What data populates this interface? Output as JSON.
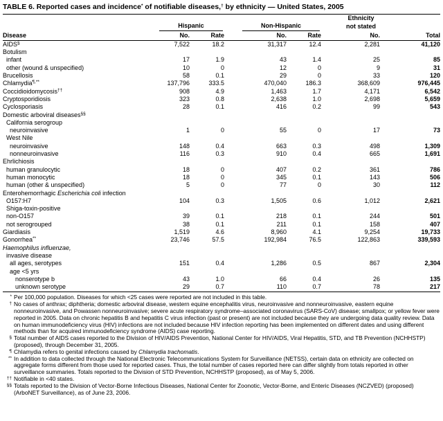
{
  "title": [
    "TABLE 6. Reported cases and incidence",
    {
      "t": "*",
      "s": "sup"
    },
    " of notifiable diseases,",
    {
      "t": "†",
      "s": "sup"
    },
    " by ethnicity — United States, 2005"
  ],
  "header": {
    "ethnicity": [
      "Ethnicity",
      "not stated"
    ],
    "groups": [
      "Hispanic",
      "Non-Hispanic"
    ],
    "columns": [
      "Disease",
      "No.",
      "Rate",
      "No.",
      "Rate",
      "No.",
      "Total"
    ]
  },
  "table": {
    "rows": [
      {
        "label": [
          "AIDS",
          {
            "t": "§",
            "s": "sup"
          }
        ],
        "level": 0,
        "cells": [
          "7,522",
          "18.2",
          "31,317",
          "12.4",
          "2,281",
          "41,120"
        ]
      },
      {
        "label": [
          "Botulism"
        ],
        "level": 0
      },
      {
        "label": [
          "infant"
        ],
        "level": 1,
        "cells": [
          "17",
          "1.9",
          "43",
          "1.4",
          "25",
          "85"
        ]
      },
      {
        "label": [
          "other (wound & unspecified)"
        ],
        "level": 1,
        "cells": [
          "10",
          "0",
          "12",
          "0",
          "9",
          "31"
        ]
      },
      {
        "label": [
          "Brucellosis"
        ],
        "level": 0,
        "cells": [
          "58",
          "0.1",
          "29",
          "0",
          "33",
          "120"
        ]
      },
      {
        "label": [
          "Chlamydia",
          {
            "t": "¶,**",
            "s": "sup"
          }
        ],
        "level": 0,
        "cells": [
          "137,796",
          "333.5",
          "470,040",
          "186.3",
          "368,609",
          "976,445"
        ]
      },
      {
        "label": [
          "Coccidioidomycosis",
          {
            "t": "††",
            "s": "sup"
          }
        ],
        "level": 0,
        "cells": [
          "908",
          "4.9",
          "1,463",
          "1.7",
          "4,171",
          "6,542"
        ]
      },
      {
        "label": [
          "Cryptosporidiosis"
        ],
        "level": 0,
        "cells": [
          "323",
          "0.8",
          "2,638",
          "1.0",
          "2,698",
          "5,659"
        ]
      },
      {
        "label": [
          "Cyclosporiasis"
        ],
        "level": 0,
        "cells": [
          "28",
          "0.1",
          "416",
          "0.2",
          "99",
          "543"
        ]
      },
      {
        "label": [
          "Domestic arboviral diseases",
          {
            "t": "§§",
            "s": "sup"
          }
        ],
        "level": 0
      },
      {
        "label": [
          "California serogroup"
        ],
        "level": 1
      },
      {
        "label": [
          "neuroinvasive"
        ],
        "level": 2,
        "cells": [
          "1",
          "0",
          "55",
          "0",
          "17",
          "73"
        ]
      },
      {
        "label": [
          "West Nile"
        ],
        "level": 1
      },
      {
        "label": [
          "neuroinvasive"
        ],
        "level": 2,
        "cells": [
          "148",
          "0.4",
          "663",
          "0.3",
          "498",
          "1,309"
        ]
      },
      {
        "label": [
          "nonneuroinvasive"
        ],
        "level": 2,
        "cells": [
          "116",
          "0.3",
          "910",
          "0.4",
          "665",
          "1,691"
        ]
      },
      {
        "label": [
          "Ehrlichiosis"
        ],
        "level": 0
      },
      {
        "label": [
          "human granulocytic"
        ],
        "level": 1,
        "cells": [
          "18",
          "0",
          "407",
          "0.2",
          "361",
          "786"
        ]
      },
      {
        "label": [
          "human monocytic"
        ],
        "level": 1,
        "cells": [
          "18",
          "0",
          "345",
          "0.1",
          "143",
          "506"
        ]
      },
      {
        "label": [
          "human (other & unspecified)"
        ],
        "level": 1,
        "cells": [
          "5",
          "0",
          "77",
          "0",
          "30",
          "112"
        ]
      },
      {
        "label": [
          "Enterohemorrhagic ",
          {
            "t": "Escherichia coli",
            "s": "i"
          },
          " infection"
        ],
        "level": 0
      },
      {
        "label": [
          "O157:H7"
        ],
        "level": 1,
        "cells": [
          "104",
          "0.3",
          "1,505",
          "0.6",
          "1,012",
          "2,621"
        ]
      },
      {
        "label": [
          "Shiga-toxin-positive"
        ],
        "level": 1
      },
      {
        "label": [
          "non-O157"
        ],
        "level": 1,
        "cells": [
          "39",
          "0.1",
          "218",
          "0.1",
          "244",
          "501"
        ]
      },
      {
        "label": [
          "not serogrouped"
        ],
        "level": 1,
        "cells": [
          "38",
          "0.1",
          "211",
          "0.1",
          "158",
          "407"
        ]
      },
      {
        "label": [
          "Giardiasis"
        ],
        "level": 0,
        "cells": [
          "1,519",
          "4.6",
          "8,960",
          "4.1",
          "9,254",
          "19,733"
        ]
      },
      {
        "label": [
          "Gonorrhea",
          {
            "t": "**",
            "s": "sup"
          }
        ],
        "level": 0,
        "cells": [
          "23,746",
          "57.5",
          "192,984",
          "76.5",
          "122,863",
          "339,593"
        ]
      },
      {
        "label": [
          {
            "t": "Haemophilus influenzae,",
            "s": "i"
          }
        ],
        "level": 0
      },
      {
        "label": [
          "invasive disease"
        ],
        "level": 1
      },
      {
        "label": [
          "all ages, serotypes"
        ],
        "level": 2,
        "cells": [
          "151",
          "0.4",
          "1,286",
          "0.5",
          "867",
          "2,304"
        ]
      },
      {
        "label": [
          "age <5 yrs"
        ],
        "level": 2
      },
      {
        "label": [
          "nonserotype b"
        ],
        "level": 3,
        "cells": [
          "43",
          "1.0",
          "66",
          "0.4",
          "26",
          "135"
        ]
      },
      {
        "label": [
          "unknown serotype"
        ],
        "level": 3,
        "cells": [
          "29",
          "0.7",
          "110",
          "0.7",
          "78",
          "217"
        ]
      }
    ]
  },
  "footnotes": [
    {
      "mark": "*",
      "text": [
        "Per 100,000 population. Diseases for which <25 cases were reported are not included in this table."
      ]
    },
    {
      "mark": "†",
      "text": [
        "No cases of anthrax; diphtheria; domestic arboviral disease, western equine encephalitis virus, neuroinvasive and nonneuroinvasive, eastern equine nonneuroinvasive, and Powassen nonneuroinvasive; severe acute respiratory syndrome–associated coronavirus (SARS-CoV) disease; smallpox; or yellow fever were reported in 2005. Data on chronic hepatitis B and hepatitis C virus infection (past or present) are not included because they are undergoing data quality review. Data on human immunodeficiency virus (HIV) infections are not included because HIV infection reporting has been implemented on different dates and using different methods than for acquired immunodeficiency syndrome (AIDS) case reporting."
      ]
    },
    {
      "mark": "§",
      "text": [
        "Total number of AIDS cases reported to the Division of HIV/AIDS Prevention, National Center for HIV/AIDS, Viral Hepatitis, STD, and TB Prevention (NCHHSTP) (proposed), through December 31, 2005."
      ]
    },
    {
      "mark": "¶",
      "text": [
        "Chlamydia refers to genital infections caused by ",
        {
          "t": "Chlamydia trachomatis",
          "s": "i"
        },
        "."
      ]
    },
    {
      "mark": "**",
      "text": [
        "In addition to data collected through the National Electronic Telecommunications System for Surveillance (NETSS), certain data on ethnicity are collected on aggregate forms different from those used for reported cases. Thus, the total number of cases reported here can differ slightly from totals reported in other surveillance summaries. Totals reported to the Division of STD Prevention, NCHHSTP (proposed), as of May 5, 2006."
      ]
    },
    {
      "mark": "††",
      "text": [
        "Notifiable in <40 states."
      ]
    },
    {
      "mark": "§§",
      "text": [
        "Totals reported to the Division of Vector-Borne Infectious Diseases, National Center for Zoonotic, Vector-Borne, and Enteric Diseases (NCZVED) (proposed) (ArboNET Surveillance), as of June 23, 2006."
      ]
    }
  ]
}
